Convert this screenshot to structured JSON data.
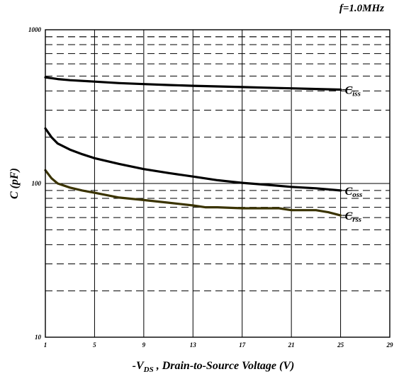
{
  "chart_data": {
    "type": "line",
    "title": "f=1.0MHz",
    "xlabel": {
      "prefix": "-V",
      "sub": "DS",
      "suffix": " , Drain-to-Source Voltage (V)"
    },
    "ylabel": "C (pF)",
    "xlim": [
      1,
      29
    ],
    "ylim": [
      10,
      1000
    ],
    "yscale": "log",
    "xticks": [
      1,
      5,
      9,
      13,
      17,
      21,
      25,
      29
    ],
    "xtick_labels": [
      "1",
      "5",
      "9",
      "13",
      "17",
      "21",
      "25",
      "29"
    ],
    "yticks": [
      10,
      100,
      1000
    ],
    "ytick_labels": [
      "10",
      "100",
      "1000"
    ],
    "grid": true,
    "series": [
      {
        "name": "Ciss",
        "label_main": "C",
        "label_sub": "iss",
        "color": "#000000",
        "x": [
          1,
          2,
          3,
          5,
          7,
          9,
          11,
          13,
          15,
          17,
          19,
          21,
          23,
          25
        ],
        "y": [
          490,
          478,
          470,
          460,
          450,
          443,
          437,
          432,
          428,
          424,
          420,
          416,
          412,
          408
        ]
      },
      {
        "name": "Coss",
        "label_main": "C",
        "label_sub": "oss",
        "color": "#000000",
        "x": [
          1,
          1.5,
          2,
          3,
          4,
          5,
          7,
          9,
          11,
          13,
          15,
          17,
          19,
          21,
          23,
          25
        ],
        "y": [
          228,
          200,
          182,
          166,
          155,
          146,
          134,
          124,
          117,
          111,
          105,
          101,
          98,
          95,
          93,
          90
        ]
      },
      {
        "name": "Crss",
        "label_main": "C",
        "label_sub": "rss",
        "color": "#3a3300",
        "x": [
          1,
          1.5,
          2,
          3,
          4,
          5,
          7,
          9,
          11,
          13,
          14,
          15,
          17,
          19,
          20,
          21,
          22,
          23,
          24,
          25
        ],
        "y": [
          122,
          108,
          100,
          94,
          90,
          87,
          81,
          78,
          75,
          72,
          70,
          70,
          69,
          69,
          69,
          67,
          67,
          67,
          65,
          62
        ]
      }
    ]
  }
}
